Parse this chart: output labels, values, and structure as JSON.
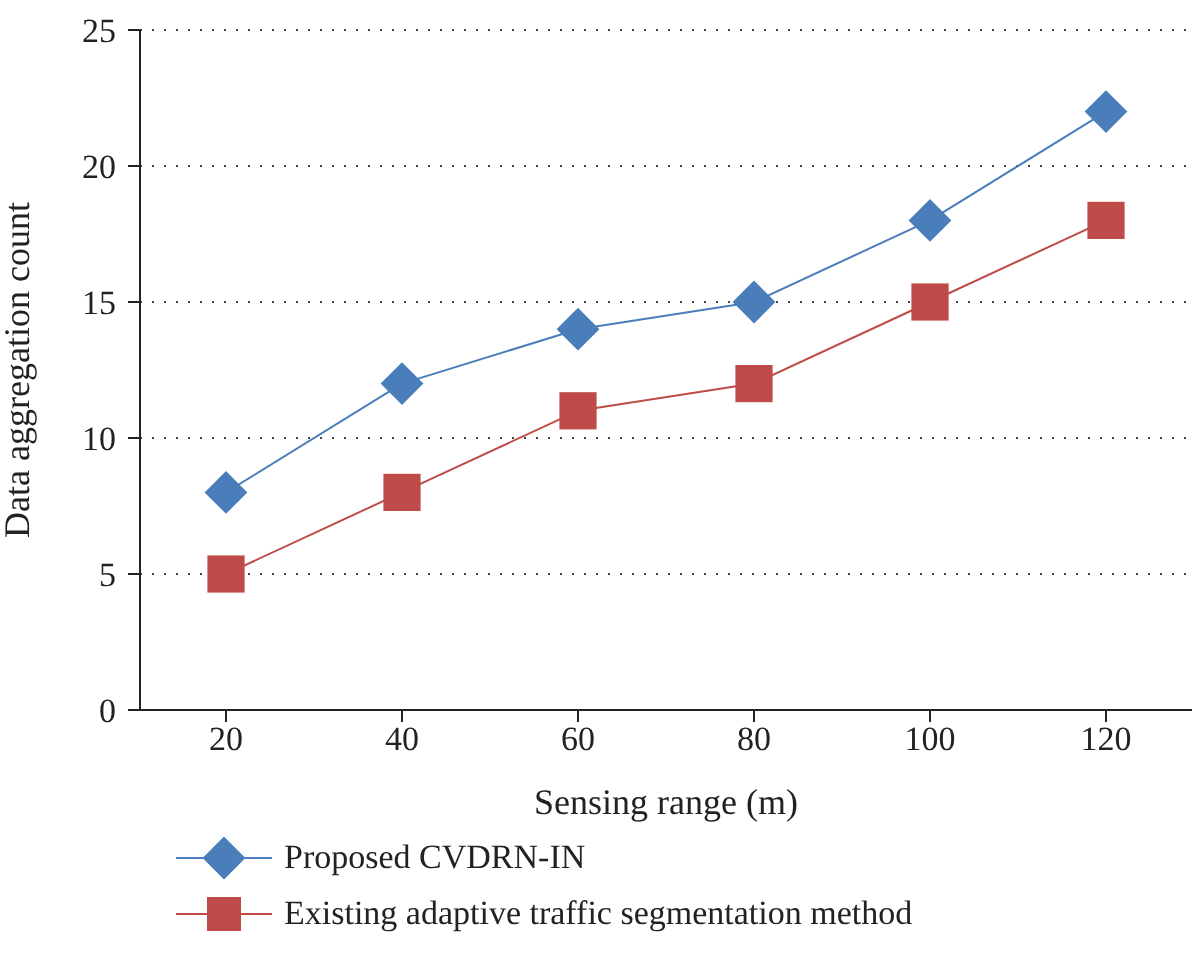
{
  "chart_data": {
    "type": "line",
    "xlabel": "Sensing range (m)",
    "ylabel": "Data aggregation count",
    "categories": [
      "20",
      "40",
      "60",
      "80",
      "100",
      "120"
    ],
    "series": [
      {
        "name": "Proposed CVDRN-IN",
        "color": "#4a7ebb",
        "marker": "diamond",
        "values": [
          8,
          12,
          14,
          15,
          18,
          22
        ]
      },
      {
        "name": "Existing adaptive traffic segmentation method",
        "color": "#be4b48",
        "marker": "square",
        "values": [
          5,
          8,
          11,
          12,
          15,
          18
        ]
      }
    ],
    "ylim": [
      0,
      25
    ],
    "yticks": [
      0,
      5,
      10,
      15,
      20,
      25
    ],
    "grid": "y",
    "legend": "bottom",
    "line_style": "solid"
  }
}
